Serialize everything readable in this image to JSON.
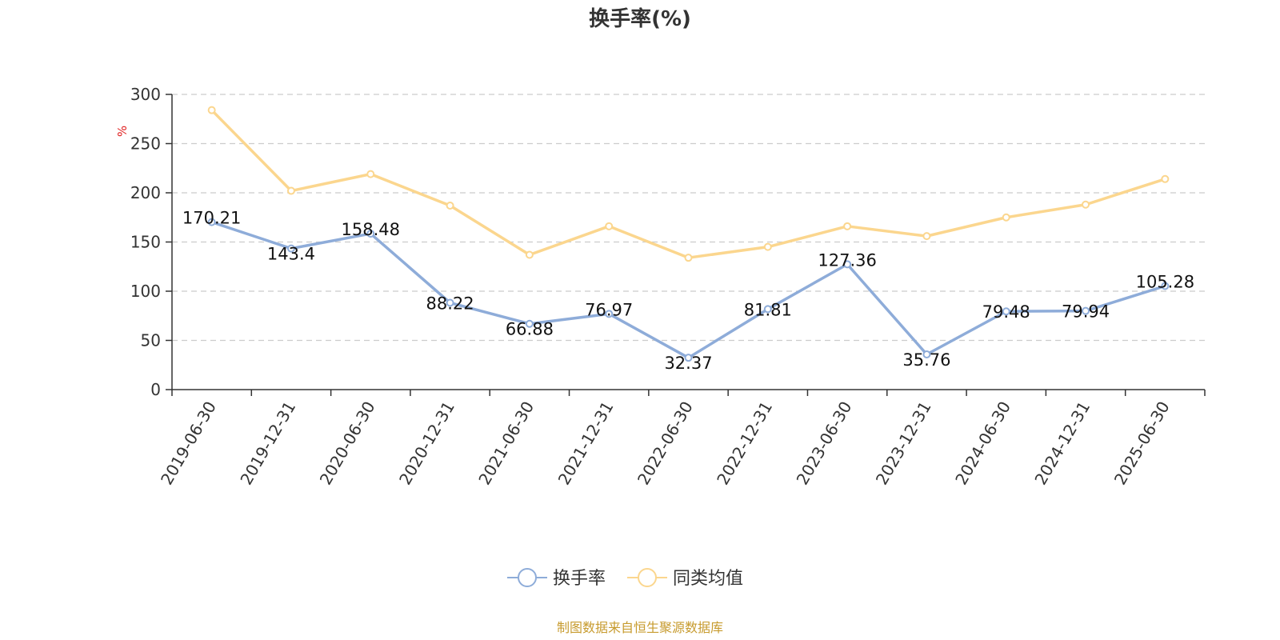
{
  "colors": {
    "series1": "#8eacd9",
    "series2": "#fbd68e",
    "source": "#c79b2e",
    "unit": "#e02020",
    "grid": "#cccccc",
    "axis": "#333333"
  },
  "source_text": "制图数据来自恒生聚源数据库",
  "chart_data": {
    "type": "line",
    "title": "换手率(%)",
    "ylabel": "%",
    "xlabel": "",
    "ylim": [
      0,
      300
    ],
    "yticks": [
      0,
      50,
      100,
      150,
      200,
      250,
      300
    ],
    "grid": true,
    "legend_position": "bottom",
    "categories": [
      "2019-06-30",
      "2019-12-31",
      "2020-06-30",
      "2020-12-31",
      "2021-06-30",
      "2021-12-31",
      "2022-06-30",
      "2022-12-31",
      "2023-06-30",
      "2023-12-31",
      "2024-06-30",
      "2024-12-31",
      "2025-06-30"
    ],
    "series": [
      {
        "name": "换手率",
        "values": [
          170.21,
          143.4,
          158.48,
          88.22,
          66.88,
          76.97,
          32.37,
          81.81,
          127.36,
          35.76,
          79.48,
          79.94,
          105.28
        ],
        "labels": [
          "170.21",
          "143.4",
          "158.48",
          "88.22",
          "66.88",
          "76.97",
          "32.37",
          "81.81",
          "127.36",
          "35.76",
          "79.48",
          "79.94",
          "105.28"
        ]
      },
      {
        "name": "同类均值",
        "values": [
          284,
          202,
          219,
          187,
          137,
          166,
          134,
          145,
          166,
          156,
          175,
          188,
          214
        ]
      }
    ]
  }
}
